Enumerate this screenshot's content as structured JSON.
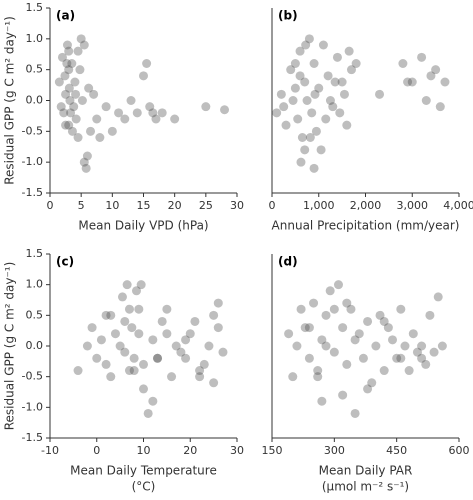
{
  "chart_data": [
    {
      "type": "scatter",
      "label": "(a)",
      "ylabel": "Residual GPP (g C m² day⁻¹)",
      "xlabel": "Mean Daily VPD (hPa)",
      "color": "#444444",
      "opacity": 0.35,
      "x": [
        1.5,
        2,
        2.2,
        2.5,
        2.8,
        3,
        3,
        3.2,
        3.5,
        3.8,
        4,
        4.2,
        4.5,
        5,
        5.5,
        6,
        1.8,
        2.4,
        3.1,
        3.6,
        4.1,
        2.7,
        3.3,
        4.8,
        5.2,
        6.2,
        6.5,
        7,
        7.5,
        8,
        9,
        10,
        11,
        12,
        13,
        14,
        15,
        15.5,
        16,
        16.5,
        17,
        18,
        20,
        25,
        28,
        5.8,
        5.5,
        4.5,
        3,
        2.5
      ],
      "values": [
        0.3,
        0.7,
        -0.2,
        0.1,
        0.9,
        0.5,
        -0.4,
        0.0,
        0.6,
        -0.1,
        0.3,
        -0.3,
        0.8,
        1.0,
        -1.0,
        -0.9,
        -0.1,
        0.4,
        0.2,
        -0.5,
        0.1,
        0.6,
        -0.2,
        0.5,
        0.0,
        0.2,
        -0.5,
        0.1,
        -0.3,
        -0.6,
        -0.1,
        -0.5,
        -0.2,
        -0.3,
        0.0,
        -0.2,
        0.4,
        0.6,
        -0.1,
        -0.2,
        -0.3,
        -0.2,
        -0.3,
        -0.1,
        -0.15,
        -1.1,
        0.9,
        -0.6,
        0.8,
        -0.4
      ],
      "xlim": [
        0,
        30
      ],
      "xticks": [
        0,
        5,
        10,
        15,
        20,
        25,
        30
      ],
      "ylim": [
        -1.5,
        1.5
      ],
      "yticks": [
        -1.5,
        {
          "value": -1,
          "label": "-1.0"
        },
        -0.5,
        {
          "value": 0,
          "label": "0.0"
        },
        0.5,
        {
          "value": 1,
          "label": "1.0"
        },
        1.5
      ]
    },
    {
      "type": "scatter",
      "label": "(b)",
      "xlabel": "Annual Precipitation (mm/year)",
      "color": "#444444",
      "opacity": 0.35,
      "x": [
        100,
        200,
        300,
        400,
        500,
        550,
        600,
        650,
        700,
        750,
        800,
        850,
        900,
        950,
        1000,
        1050,
        1100,
        1200,
        1300,
        1400,
        1500,
        1600,
        1700,
        1800,
        250,
        450,
        620,
        720,
        820,
        920,
        1150,
        1250,
        1350,
        1450,
        1550,
        1650,
        2300,
        2800,
        2900,
        3000,
        3200,
        3300,
        3400,
        3500,
        3600,
        3700,
        700,
        600,
        500,
        900
      ],
      "values": [
        -0.2,
        0.1,
        -0.4,
        0.5,
        0.2,
        -0.3,
        0.8,
        -0.6,
        0.3,
        0.0,
        1.0,
        -0.2,
        0.6,
        -0.5,
        0.2,
        -0.8,
        0.9,
        0.4,
        -0.1,
        0.7,
        0.3,
        -0.4,
        0.5,
        0.6,
        -0.1,
        0.0,
        -1.0,
        0.9,
        -0.6,
        0.1,
        -0.3,
        0.0,
        0.3,
        -0.2,
        0.1,
        0.8,
        0.1,
        0.6,
        0.3,
        0.3,
        0.7,
        0.0,
        0.4,
        0.5,
        -0.1,
        0.3,
        -0.8,
        0.4,
        0.6,
        -1.1
      ],
      "xlim": [
        0,
        4000
      ],
      "xticks": [
        0,
        {
          "value": 1000,
          "label": "1,000"
        },
        {
          "value": 2000,
          "label": "2,000"
        },
        {
          "value": 3000,
          "label": "3,000"
        },
        {
          "value": 4000,
          "label": "4,000"
        }
      ],
      "ylim": [
        -1.5,
        1.5
      ]
    },
    {
      "type": "scatter",
      "label": "(c)",
      "ylabel": "Residual GPP (g C m² day⁻¹)",
      "xlabel": [
        "Mean Daily Temperature",
        "(°C)"
      ],
      "color": "#444444",
      "opacity": 0.35,
      "x": [
        -4,
        -2,
        -1,
        0,
        1,
        2,
        3,
        4,
        5,
        5.5,
        6,
        6.5,
        7,
        7.5,
        8,
        8.5,
        9,
        9.5,
        10,
        11,
        12,
        13,
        14,
        15,
        16,
        17,
        18,
        19,
        20,
        21,
        22,
        23,
        24,
        25,
        26,
        27,
        3,
        6,
        8,
        10,
        12,
        15,
        19,
        22,
        25,
        26,
        9,
        7,
        13,
        2
      ],
      "values": [
        -0.4,
        0.0,
        0.3,
        -0.2,
        0.1,
        -0.3,
        0.5,
        0.2,
        0.0,
        0.8,
        -0.1,
        1.0,
        0.6,
        0.3,
        -0.4,
        0.9,
        0.2,
        1.0,
        -0.3,
        -1.1,
        0.1,
        -0.2,
        0.4,
        0.6,
        -0.5,
        0.0,
        -0.1,
        -0.2,
        0.2,
        0.4,
        -0.5,
        -0.3,
        0.0,
        0.5,
        0.7,
        -0.1,
        -0.5,
        0.4,
        -0.2,
        -0.7,
        -0.9,
        0.2,
        0.1,
        -0.4,
        -0.6,
        0.3,
        0.6,
        -0.4,
        -0.2,
        0.5
      ],
      "xlim": [
        -10,
        30
      ],
      "xticks": [
        -10,
        0,
        10,
        20,
        30
      ],
      "ylim": [
        -1.5,
        1.5
      ],
      "yticks": [
        -1.5,
        {
          "value": -1,
          "label": "-1.0"
        },
        -0.5,
        {
          "value": 0,
          "label": "0.0"
        },
        0.5,
        {
          "value": 1,
          "label": "1.0"
        },
        1.5
      ]
    },
    {
      "type": "scatter",
      "label": "(d)",
      "xlabel": [
        "Mean Daily PAR",
        "(μmol m⁻² s⁻¹)"
      ],
      "color": "#444444",
      "opacity": 0.35,
      "x": [
        190,
        200,
        210,
        220,
        230,
        240,
        250,
        260,
        270,
        280,
        290,
        300,
        310,
        320,
        330,
        340,
        350,
        360,
        370,
        380,
        390,
        400,
        410,
        420,
        430,
        440,
        450,
        460,
        470,
        480,
        490,
        500,
        510,
        520,
        530,
        540,
        550,
        560,
        320,
        300,
        260,
        350,
        420,
        240,
        380,
        330,
        280,
        460,
        510,
        270
      ],
      "values": [
        0.2,
        -0.5,
        0.0,
        0.6,
        0.3,
        -0.2,
        0.7,
        -0.4,
        0.1,
        0.5,
        0.9,
        -0.1,
        1.0,
        0.3,
        -0.3,
        0.6,
        -1.1,
        0.2,
        -0.2,
        0.4,
        -0.6,
        0.0,
        0.5,
        -0.4,
        0.3,
        0.1,
        -0.2,
        0.6,
        0.0,
        -0.4,
        0.2,
        -0.1,
        -0.2,
        -0.3,
        0.5,
        -0.1,
        0.8,
        0.0,
        -0.8,
        0.6,
        -0.5,
        0.1,
        0.4,
        0.3,
        -0.7,
        0.7,
        0.0,
        -0.2,
        0.0,
        -0.9
      ],
      "xlim": [
        150,
        600
      ],
      "xticks": [
        150,
        300,
        450,
        600
      ],
      "ylim": [
        -1.5,
        1.5
      ]
    }
  ]
}
